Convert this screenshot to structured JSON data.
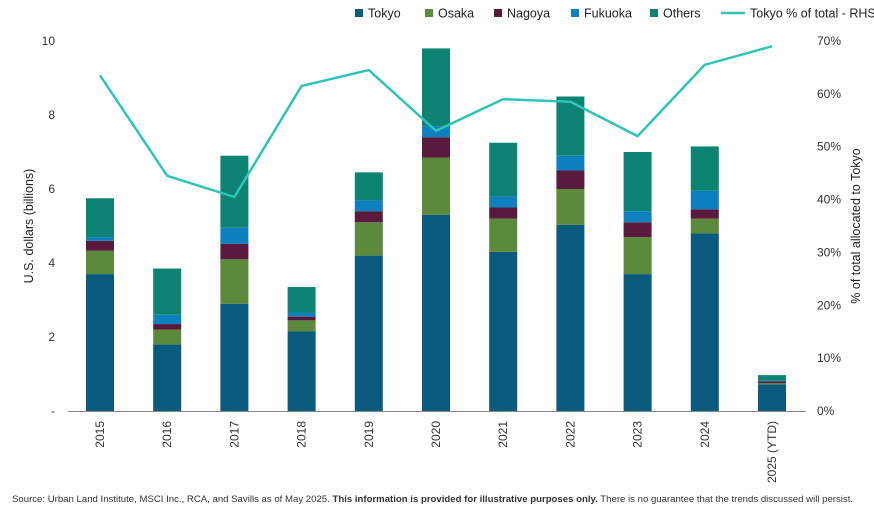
{
  "chart_data": {
    "type": "bar",
    "stacked": true,
    "categories": [
      "2015",
      "2016",
      "2017",
      "2018",
      "2019",
      "2020",
      "2021",
      "2022",
      "2023",
      "2024",
      "2025 (YTD)"
    ],
    "series": [
      {
        "name": "Tokyo",
        "color": "#0a5a7e",
        "values": [
          3.7,
          1.8,
          2.9,
          2.15,
          4.2,
          5.3,
          4.3,
          5.03,
          3.7,
          4.8,
          0.72
        ]
      },
      {
        "name": "Osaka",
        "color": "#5c8a3c",
        "values": [
          0.63,
          0.4,
          1.2,
          0.3,
          0.9,
          1.55,
          0.9,
          0.97,
          1.0,
          0.4,
          0.03
        ]
      },
      {
        "name": "Nagoya",
        "color": "#5a1a3d",
        "values": [
          0.27,
          0.15,
          0.42,
          0.1,
          0.3,
          0.55,
          0.3,
          0.5,
          0.4,
          0.25,
          0.05
        ]
      },
      {
        "name": "Fukuoka",
        "color": "#0e7fbf",
        "values": [
          0.1,
          0.25,
          0.43,
          0.1,
          0.3,
          0.3,
          0.3,
          0.4,
          0.3,
          0.5,
          0.02
        ]
      },
      {
        "name": "Others",
        "color": "#0d8473",
        "values": [
          1.05,
          1.25,
          1.95,
          0.7,
          0.75,
          2.1,
          1.45,
          1.6,
          1.6,
          1.2,
          0.15
        ]
      }
    ],
    "line_series": {
      "name": "Tokyo % of total - RHS",
      "color": "#2ec4b6",
      "axis": "right",
      "values": [
        63.5,
        44.5,
        40.5,
        61.5,
        64.5,
        53.0,
        59.0,
        58.5,
        52.0,
        65.5,
        69.0
      ]
    },
    "ylabel": "U.S. dollars (billions)",
    "ylim": [
      0,
      10
    ],
    "yticks": [
      "-",
      "2",
      "4",
      "6",
      "8",
      "10"
    ],
    "y2label": "% of total allocated to Tokyo",
    "y2lim": [
      0,
      70
    ],
    "y2ticks": [
      "0%",
      "10%",
      "20%",
      "30%",
      "40%",
      "50%",
      "60%",
      "70%"
    ],
    "legend_position": "top",
    "grid": false
  },
  "source_note": {
    "lead": "Source: Urban Land Institute, MSCI Inc., RCA, and Savills as of May 2025.",
    "bold": "This information is provided for illustrative purposes only.",
    "tail": "There is no guarantee that the trends discussed will persist."
  }
}
